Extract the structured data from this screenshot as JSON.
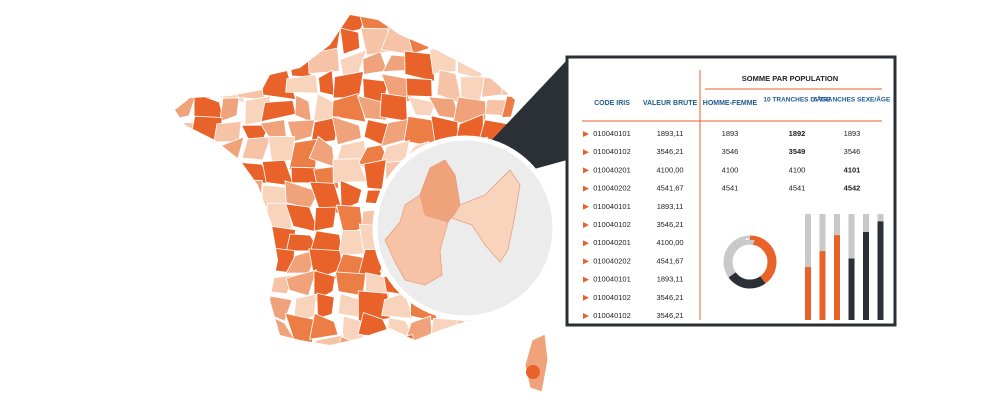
{
  "table": {
    "group_header": "SOMME PAR POPULATION",
    "columns": [
      "CODE IRIS",
      "VALEUR BRUTE",
      "HOMME-FEMME",
      "10 TRANCHES D'ÂGE",
      "6 TRANCHES SEXE/ÂGE"
    ],
    "rows": [
      [
        "010040101",
        "1893,11",
        "1893",
        "1892",
        "1893"
      ],
      [
        "010040102",
        "3546,21",
        "3546",
        "3549",
        "3546"
      ],
      [
        "010040201",
        "4100,00",
        "4100",
        "4100",
        "4101"
      ],
      [
        "010040202",
        "4541,67",
        "4541",
        "4541",
        "4542"
      ],
      [
        "010040101",
        "1893,11"
      ],
      [
        "010040102",
        "3546,21"
      ],
      [
        "010040201",
        "4100,00"
      ],
      [
        "010040202",
        "4541,67"
      ],
      [
        "010040101",
        "1893,11"
      ],
      [
        "010040102",
        "3546,21"
      ],
      [
        "010040102",
        "3546,21"
      ]
    ],
    "highlight_color": "#e8622a",
    "highlighted_cells": [
      {
        "row": 0,
        "col": 3
      },
      {
        "row": 1,
        "col": 3
      },
      {
        "row": 2,
        "col": 4
      },
      {
        "row": 3,
        "col": 4
      }
    ]
  },
  "mini_charts": {
    "donut": {
      "values": [
        40,
        25,
        35
      ],
      "colors": [
        "#e8622a",
        "#2b2f36",
        "#c9c9c9"
      ]
    },
    "bars": {
      "ylim": [
        0,
        100
      ],
      "values": [
        50,
        65,
        80,
        58,
        83,
        93
      ],
      "colors": [
        "#e8622a",
        "#e8622a",
        "#e8622a",
        "#2b2f36",
        "#2b2f36",
        "#2b2f36"
      ],
      "track_color": "#c9c9c9"
    }
  }
}
